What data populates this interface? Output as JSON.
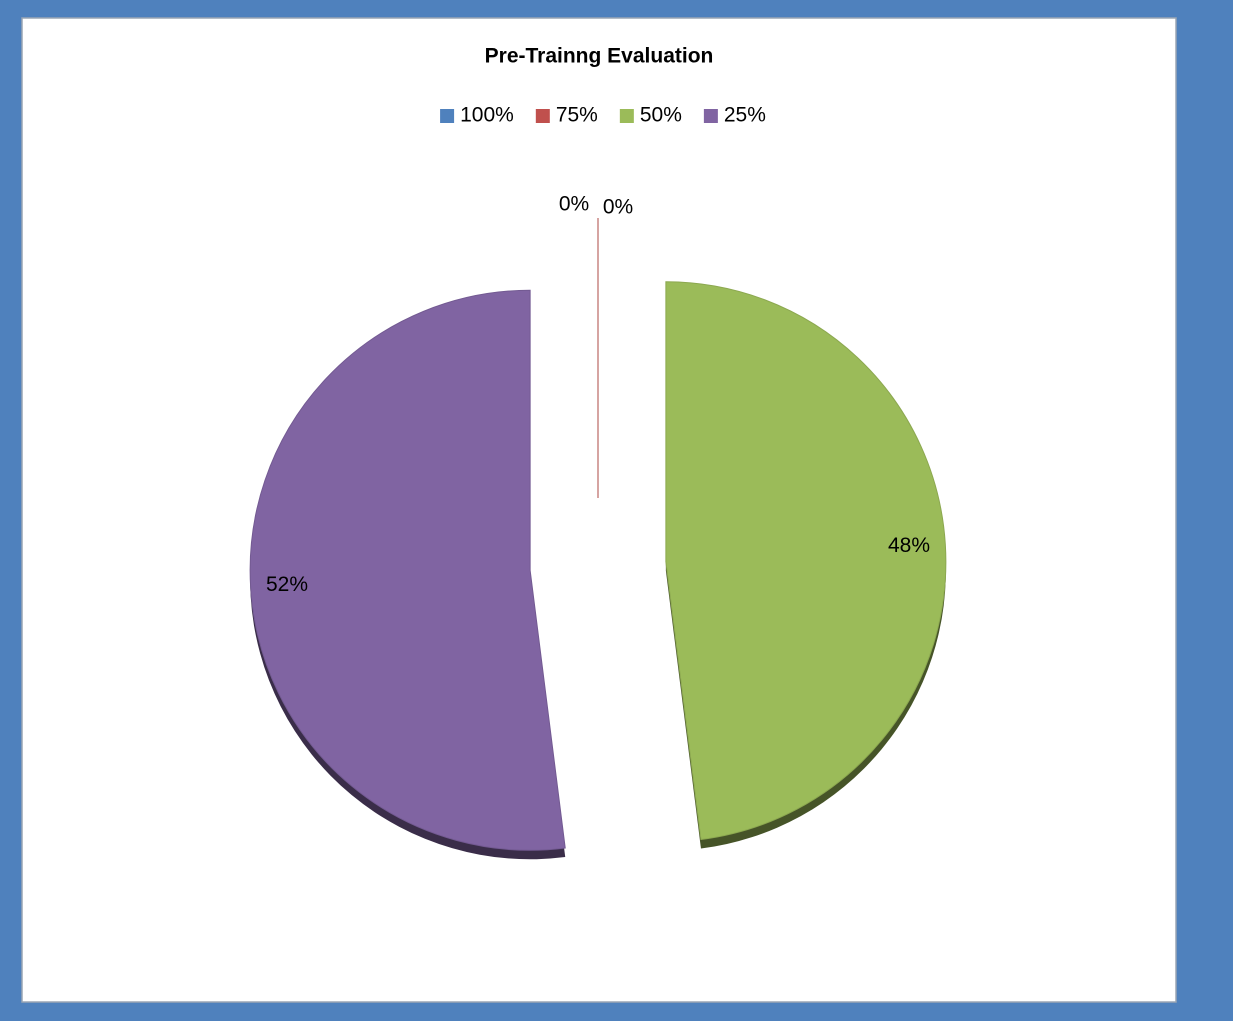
{
  "chart_data": {
    "type": "pie",
    "title": "Pre-Trainng Evaluation",
    "categories": [
      "100%",
      "75%",
      "50%",
      "25%"
    ],
    "values": [
      0,
      0,
      48,
      52
    ],
    "value_labels": [
      "0%",
      "0%",
      "48%",
      "52%"
    ],
    "colors": [
      "#4f81bd",
      "#c0504d",
      "#9bbb59",
      "#8064a2"
    ],
    "legend": "top"
  }
}
